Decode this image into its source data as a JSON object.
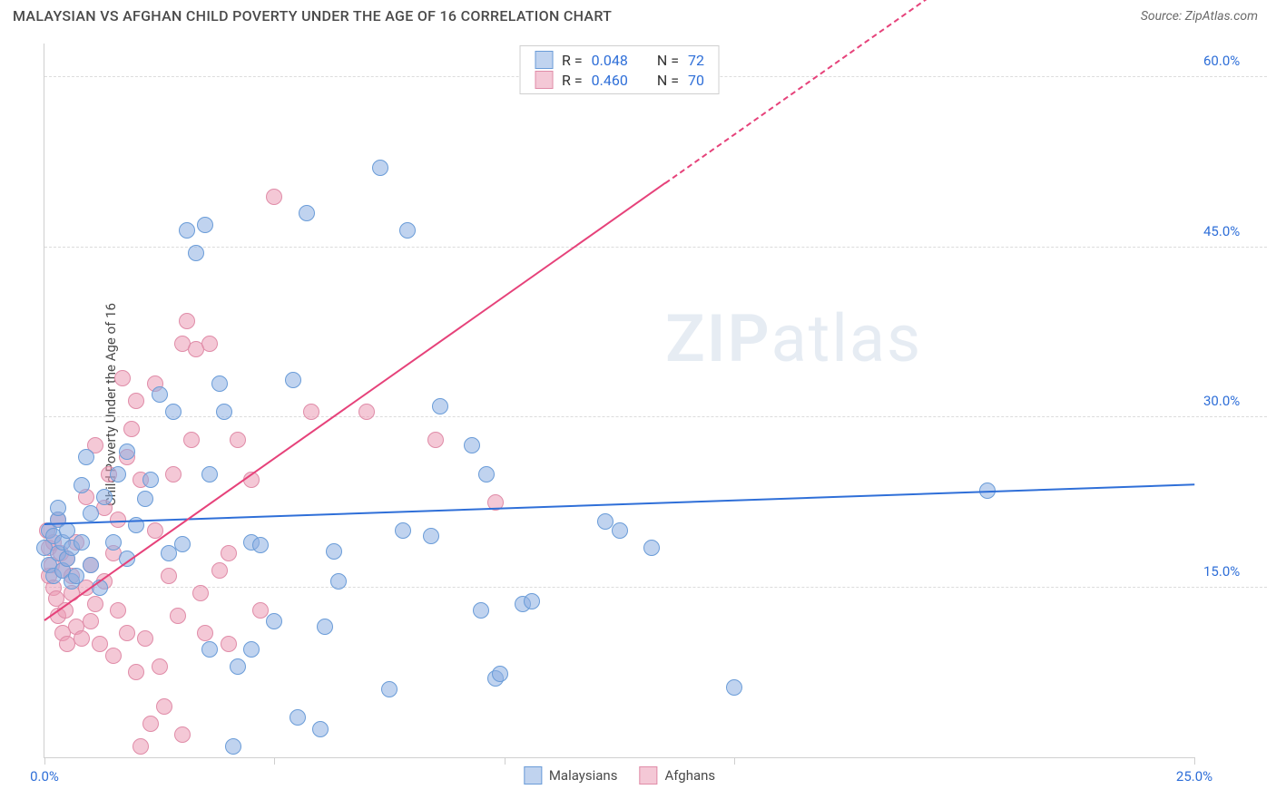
{
  "header": {
    "title": "MALAYSIAN VS AFGHAN CHILD POVERTY UNDER THE AGE OF 16 CORRELATION CHART",
    "source": "Source: ZipAtlas.com"
  },
  "ylabel": "Child Poverty Under the Age of 16",
  "watermark": {
    "bold": "ZIP",
    "light": "atlas"
  },
  "axes": {
    "xlim": [
      0,
      25
    ],
    "ylim": [
      0,
      63
    ],
    "yticks": [
      15,
      30,
      45,
      60
    ],
    "ytick_labels": [
      "15.0%",
      "30.0%",
      "45.0%",
      "60.0%"
    ],
    "xticks": [
      0,
      5,
      10,
      15,
      25
    ],
    "xtick_labels": [
      "0.0%",
      "",
      "",
      "",
      "25.0%"
    ],
    "grid_color": "#dcdcdc"
  },
  "series": {
    "malaysians": {
      "label": "Malaysians",
      "color_fill": "rgba(140,175,225,0.55)",
      "color_stroke": "#6a9cd8",
      "marker_size": 18,
      "trend": {
        "y_at_x0": 20.5,
        "y_at_xmax": 24.0,
        "color": "#2f6fd8",
        "width": 2
      },
      "points": [
        [
          0.0,
          18.5
        ],
        [
          0.1,
          20.0
        ],
        [
          0.1,
          17.0
        ],
        [
          0.2,
          19.5
        ],
        [
          0.2,
          16.0
        ],
        [
          0.3,
          21.0
        ],
        [
          0.3,
          18.0
        ],
        [
          0.3,
          22.0
        ],
        [
          0.4,
          16.5
        ],
        [
          0.4,
          19.0
        ],
        [
          0.5,
          20.0
        ],
        [
          0.5,
          17.5
        ],
        [
          0.6,
          15.5
        ],
        [
          0.6,
          18.5
        ],
        [
          0.7,
          16.0
        ],
        [
          0.8,
          24.0
        ],
        [
          0.8,
          19.0
        ],
        [
          0.9,
          26.5
        ],
        [
          1.0,
          17.0
        ],
        [
          1.0,
          21.5
        ],
        [
          1.2,
          15.0
        ],
        [
          1.3,
          23.0
        ],
        [
          1.5,
          19.0
        ],
        [
          1.6,
          25.0
        ],
        [
          1.8,
          17.5
        ],
        [
          1.8,
          27.0
        ],
        [
          2.0,
          20.5
        ],
        [
          2.2,
          22.8
        ],
        [
          2.3,
          24.5
        ],
        [
          2.5,
          32.0
        ],
        [
          2.7,
          18.0
        ],
        [
          2.8,
          30.5
        ],
        [
          3.0,
          18.8
        ],
        [
          3.1,
          46.5
        ],
        [
          3.3,
          44.5
        ],
        [
          3.5,
          47.0
        ],
        [
          3.6,
          25.0
        ],
        [
          3.6,
          9.5
        ],
        [
          3.8,
          33.0
        ],
        [
          3.9,
          30.5
        ],
        [
          4.1,
          1.0
        ],
        [
          4.2,
          8.0
        ],
        [
          4.5,
          9.5
        ],
        [
          4.5,
          19.0
        ],
        [
          4.7,
          18.7
        ],
        [
          5.0,
          12.0
        ],
        [
          5.4,
          33.3
        ],
        [
          5.5,
          3.5
        ],
        [
          5.7,
          48.0
        ],
        [
          6.0,
          2.5
        ],
        [
          6.1,
          11.5
        ],
        [
          6.3,
          18.2
        ],
        [
          6.4,
          15.5
        ],
        [
          7.3,
          52.0
        ],
        [
          7.5,
          6.0
        ],
        [
          7.8,
          20.0
        ],
        [
          7.9,
          46.5
        ],
        [
          8.4,
          19.5
        ],
        [
          8.6,
          31.0
        ],
        [
          9.3,
          27.5
        ],
        [
          9.5,
          13.0
        ],
        [
          9.6,
          25.0
        ],
        [
          9.8,
          7.0
        ],
        [
          9.9,
          7.4
        ],
        [
          10.4,
          13.5
        ],
        [
          10.6,
          13.8
        ],
        [
          12.0,
          62.0
        ],
        [
          12.2,
          20.8
        ],
        [
          12.5,
          20.0
        ],
        [
          13.2,
          18.5
        ],
        [
          15.0,
          6.2
        ],
        [
          20.5,
          23.5
        ]
      ]
    },
    "afghans": {
      "label": "Afghans",
      "color_fill": "rgba(235,155,180,0.55)",
      "color_stroke": "#e08ca8",
      "marker_size": 18,
      "trend": {
        "y_at_x0": 12.0,
        "y_at_xmax": 83.5,
        "solid_until_x": 13.5,
        "color": "#e6427a",
        "width": 2
      },
      "points": [
        [
          0.05,
          20.0
        ],
        [
          0.1,
          18.5
        ],
        [
          0.1,
          16.0
        ],
        [
          0.15,
          17.0
        ],
        [
          0.2,
          19.0
        ],
        [
          0.2,
          15.0
        ],
        [
          0.25,
          14.0
        ],
        [
          0.3,
          21.0
        ],
        [
          0.3,
          12.5
        ],
        [
          0.35,
          18.0
        ],
        [
          0.4,
          11.0
        ],
        [
          0.4,
          16.5
        ],
        [
          0.45,
          13.0
        ],
        [
          0.5,
          17.5
        ],
        [
          0.5,
          10.0
        ],
        [
          0.6,
          16.0
        ],
        [
          0.6,
          14.5
        ],
        [
          0.7,
          11.5
        ],
        [
          0.7,
          19.0
        ],
        [
          0.8,
          10.5
        ],
        [
          0.9,
          15.0
        ],
        [
          0.9,
          23.0
        ],
        [
          1.0,
          12.0
        ],
        [
          1.0,
          17.0
        ],
        [
          1.1,
          27.5
        ],
        [
          1.1,
          13.5
        ],
        [
          1.2,
          10.0
        ],
        [
          1.3,
          22.0
        ],
        [
          1.3,
          15.5
        ],
        [
          1.4,
          25.0
        ],
        [
          1.5,
          9.0
        ],
        [
          1.5,
          18.0
        ],
        [
          1.6,
          21.0
        ],
        [
          1.6,
          13.0
        ],
        [
          1.7,
          33.5
        ],
        [
          1.8,
          26.5
        ],
        [
          1.8,
          11.0
        ],
        [
          1.9,
          29.0
        ],
        [
          2.0,
          7.5
        ],
        [
          2.0,
          31.5
        ],
        [
          2.1,
          24.5
        ],
        [
          2.1,
          1.0
        ],
        [
          2.2,
          10.5
        ],
        [
          2.3,
          3.0
        ],
        [
          2.4,
          33.0
        ],
        [
          2.4,
          20.0
        ],
        [
          2.5,
          8.0
        ],
        [
          2.6,
          4.5
        ],
        [
          2.7,
          16.0
        ],
        [
          2.8,
          25.0
        ],
        [
          2.9,
          12.5
        ],
        [
          3.0,
          2.0
        ],
        [
          3.0,
          36.5
        ],
        [
          3.1,
          38.5
        ],
        [
          3.2,
          28.0
        ],
        [
          3.3,
          36.0
        ],
        [
          3.4,
          14.5
        ],
        [
          3.5,
          11.0
        ],
        [
          3.6,
          36.5
        ],
        [
          3.8,
          16.5
        ],
        [
          4.0,
          10.0
        ],
        [
          4.0,
          18.0
        ],
        [
          4.2,
          28.0
        ],
        [
          4.5,
          24.5
        ],
        [
          4.7,
          13.0
        ],
        [
          5.0,
          49.5
        ],
        [
          5.8,
          30.5
        ],
        [
          7.0,
          30.5
        ],
        [
          8.5,
          28.0
        ],
        [
          9.8,
          22.5
        ]
      ]
    }
  },
  "stats": [
    {
      "series": "malaysians",
      "R": "0.048",
      "N": "72"
    },
    {
      "series": "afghans",
      "R": "0.460",
      "N": "70"
    }
  ],
  "legend_labels": {
    "R": "R =",
    "N": "N ="
  },
  "bottom_legend": [
    {
      "series": "malaysians",
      "label": "Malaysians"
    },
    {
      "series": "afghans",
      "label": "Afghans"
    }
  ]
}
